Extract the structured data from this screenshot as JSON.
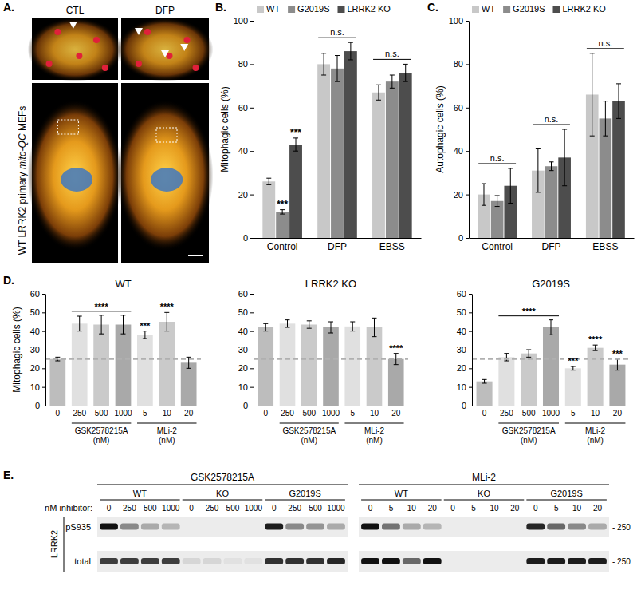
{
  "panels": [
    "A.",
    "B.",
    "C.",
    "D.",
    "E."
  ],
  "images": {
    "conditions": [
      "CTL",
      "DFP"
    ],
    "side_label": [
      "WT LRRK2 primary ",
      "mito-QC",
      " MEFs"
    ]
  },
  "chart_data": [
    {
      "type": "bar",
      "ylabel": "Mitophagic cells (%)",
      "categories": [
        "Control",
        "DFP",
        "EBSS"
      ],
      "series": [
        {
          "name": "WT",
          "color": "#c8c8c8",
          "values": [
            26,
            80,
            67
          ],
          "errors": [
            1.5,
            5,
            3.5
          ]
        },
        {
          "name": "G2019S",
          "color": "#8c8c8c",
          "values": [
            12,
            78,
            72
          ],
          "errors": [
            1,
            6,
            3
          ]
        },
        {
          "name": "LRRK2 KO",
          "color": "#4d4d4d",
          "values": [
            43,
            86,
            76
          ],
          "errors": [
            3,
            4,
            4
          ]
        }
      ],
      "ylim": [
        0,
        100
      ],
      "yticks": [
        0,
        20,
        40,
        60,
        80,
        100
      ],
      "legend": "top",
      "annotations": [
        {
          "text": "***",
          "category": 0,
          "series": 1
        },
        {
          "text": "***",
          "category": 0,
          "series": 2
        },
        {
          "text": "n.s.",
          "category": 1
        },
        {
          "text": "n.s.",
          "category": 2
        }
      ]
    },
    {
      "type": "bar",
      "ylabel": "Autophagic cells (%)",
      "categories": [
        "Control",
        "DFP",
        "EBSS"
      ],
      "series": [
        {
          "name": "WT",
          "color": "#c8c8c8",
          "values": [
            20,
            31,
            66
          ],
          "errors": [
            5,
            10,
            19
          ]
        },
        {
          "name": "G2019S",
          "color": "#8c8c8c",
          "values": [
            17,
            33,
            55
          ],
          "errors": [
            2.5,
            2,
            8
          ]
        },
        {
          "name": "LRRK2 KO",
          "color": "#4d4d4d",
          "values": [
            24,
            37,
            63
          ],
          "errors": [
            8,
            13,
            8
          ]
        }
      ],
      "ylim": [
        0,
        100
      ],
      "yticks": [
        0,
        20,
        40,
        60,
        80,
        100
      ],
      "legend": "top",
      "annotations": [
        {
          "text": "n.s.",
          "category": 0
        },
        {
          "text": "n.s.",
          "category": 1
        },
        {
          "text": "n.s.",
          "category": 2
        }
      ]
    },
    {
      "type": "bar",
      "title": "WT",
      "ylabel": "Mitophagic cells (%)",
      "categories": [
        "0",
        "250",
        "500",
        "1000",
        "5",
        "10",
        "20"
      ],
      "values": [
        25,
        44,
        43.5,
        43.5,
        38,
        45,
        23
      ],
      "errors": [
        1,
        4,
        5,
        5,
        2,
        5,
        3
      ],
      "colors": [
        "#bdbdbd",
        "#e0e0e0",
        "#cacaca",
        "#a9a9a9",
        "#e0e0e0",
        "#cacaca",
        "#a9a9a9"
      ],
      "ylim": [
        0,
        60
      ],
      "yticks": [
        0,
        10,
        20,
        30,
        40,
        50,
        60
      ],
      "reference_line": 25,
      "groups": [
        {
          "label": "GSK2578215A",
          "unit": "(nM)",
          "members": [
            1,
            2,
            3
          ]
        },
        {
          "label": "MLi-2",
          "unit": "(nM)",
          "members": [
            4,
            5,
            6
          ]
        }
      ],
      "annotations": [
        {
          "text": "****",
          "members": [
            1,
            2,
            3
          ]
        },
        {
          "text": "***",
          "category": 4
        },
        {
          "text": "****",
          "category": 5
        }
      ]
    },
    {
      "type": "bar",
      "title": "LRRK2 KO",
      "categories": [
        "0",
        "250",
        "500",
        "1000",
        "5",
        "10",
        "20"
      ],
      "values": [
        42,
        44,
        43.5,
        42,
        42.5,
        42,
        25
      ],
      "errors": [
        2,
        2,
        2,
        3,
        2.5,
        5,
        3
      ],
      "colors": [
        "#bdbdbd",
        "#e0e0e0",
        "#cacaca",
        "#a9a9a9",
        "#e0e0e0",
        "#cacaca",
        "#a9a9a9"
      ],
      "ylim": [
        0,
        60
      ],
      "yticks": [
        0,
        10,
        20,
        30,
        40,
        50,
        60
      ],
      "reference_line": 25,
      "groups": [
        {
          "label": "GSK2578215A",
          "unit": "(nM)",
          "members": [
            1,
            2,
            3
          ]
        },
        {
          "label": "MLi-2",
          "unit": "(nM)",
          "members": [
            4,
            5,
            6
          ]
        }
      ],
      "annotations": [
        {
          "text": "****",
          "category": 6
        }
      ]
    },
    {
      "type": "bar",
      "title": "G2019S",
      "categories": [
        "0",
        "250",
        "500",
        "1000",
        "5",
        "10",
        "20"
      ],
      "values": [
        13,
        26,
        28,
        42,
        20,
        31,
        22
      ],
      "errors": [
        1,
        2,
        2,
        4,
        1,
        1.5,
        3
      ],
      "colors": [
        "#bdbdbd",
        "#e0e0e0",
        "#cacaca",
        "#a9a9a9",
        "#e0e0e0",
        "#cacaca",
        "#a9a9a9"
      ],
      "ylim": [
        0,
        60
      ],
      "yticks": [
        0,
        10,
        20,
        30,
        40,
        50,
        60
      ],
      "reference_line": 25,
      "groups": [
        {
          "label": "GSK2578215A",
          "unit": "(nM)",
          "members": [
            1,
            2,
            3
          ]
        },
        {
          "label": "MLi-2",
          "unit": "(nM)",
          "members": [
            4,
            5,
            6
          ]
        }
      ],
      "annotations": [
        {
          "text": "****",
          "members": [
            1,
            2,
            3
          ]
        },
        {
          "text": "***",
          "category": 4
        },
        {
          "text": "****",
          "category": 5
        },
        {
          "text": "***",
          "category": 6
        }
      ]
    }
  ],
  "blot": {
    "inhibitors": [
      {
        "name": "GSK2578215A",
        "doses": [
          0,
          250,
          500,
          1000
        ]
      },
      {
        "name": "MLi-2",
        "doses": [
          0,
          5,
          10,
          20
        ]
      }
    ],
    "genotypes": [
      "WT",
      "KO",
      "G2019S"
    ],
    "dose_label": "nM inhibitor:",
    "protein": "LRRK2",
    "size_marker": "- 250",
    "rows": [
      {
        "label": "pS935",
        "intensity": [
          1,
          0.45,
          0.3,
          0.25,
          0,
          0,
          0,
          0,
          0.95,
          0.45,
          0.4,
          0.3,
          1,
          0.55,
          0.3,
          0.25,
          0,
          0,
          0,
          0,
          0.9,
          0.6,
          0.45,
          0.3
        ]
      },
      {
        "label": "total",
        "intensity": [
          0.8,
          0.8,
          0.8,
          0.8,
          0.1,
          0.1,
          0.05,
          0.05,
          0.85,
          0.85,
          0.85,
          0.9,
          1,
          1,
          0.6,
          1,
          0,
          0,
          0,
          0,
          0.95,
          0.95,
          0.95,
          0.95
        ]
      }
    ]
  }
}
